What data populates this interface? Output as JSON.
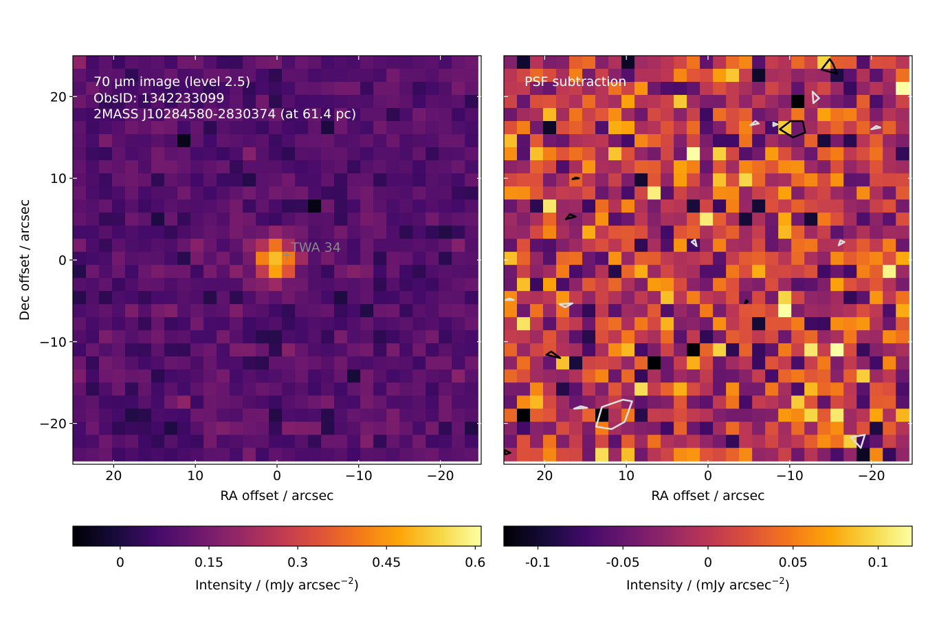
{
  "figure": {
    "colormap": "inferno",
    "colors": {
      "cross": "#888888",
      "target_label": "#888888",
      "annotation_text": "#ffffff",
      "contour_positive": "#000000",
      "contour_negative": "#dddddd"
    }
  },
  "chart_data": [
    {
      "type": "heatmap",
      "panel": "left",
      "annotations": [
        "70 µm image (level 2.5)",
        "ObsID: 1342233099",
        "2MASS J10284580-2830374 (at 61.4 pc)"
      ],
      "target": {
        "label": "TWA 34",
        "x": -1.2,
        "y": 0.6
      },
      "xlabel": "RA offset / arcsec",
      "ylabel": "Dec offset / arcsec",
      "xlim": [
        25,
        -25
      ],
      "ylim": [
        -25,
        25
      ],
      "xticks": [
        20,
        10,
        0,
        -10,
        -20
      ],
      "xtick_labels": [
        "20",
        "10",
        "0",
        "−10",
        "−20"
      ],
      "yticks": [
        20,
        10,
        0,
        -10,
        -20
      ],
      "ytick_labels": [
        "20",
        "10",
        "0",
        "−10",
        "−20"
      ],
      "grid": {
        "nx": 31,
        "ny": 31,
        "pixel_arcsec": 1.6
      },
      "source_peak": {
        "x": 0,
        "y": 0,
        "value": 0.6,
        "sigma_arcsec": 1.6
      },
      "background_value": 0.09,
      "colorbar": {
        "label": "Intensity / (mJy arcsec",
        "label_exp": "−2",
        "label_end": ")",
        "vmin": -0.08,
        "vmax": 0.61,
        "ticks": [
          0,
          0.15,
          0.3,
          0.45,
          0.6
        ],
        "tick_labels": [
          "0",
          "0.15",
          "0.3",
          "0.45",
          "0.6"
        ]
      }
    },
    {
      "type": "heatmap",
      "panel": "right",
      "annotations": [
        "PSF subtraction"
      ],
      "xlabel": "RA offset / arcsec",
      "xlim": [
        25,
        -25
      ],
      "ylim": [
        -25,
        25
      ],
      "xticks": [
        20,
        10,
        0,
        -10,
        -20
      ],
      "xtick_labels": [
        "20",
        "10",
        "0",
        "−10",
        "−20"
      ],
      "grid": {
        "nx": 31,
        "ny": 31,
        "pixel_arcsec": 1.6
      },
      "background_value": 0.0,
      "colorbar": {
        "label": "Intensity / (mJy arcsec",
        "label_exp": "−2",
        "label_end": ")",
        "vmin": -0.12,
        "vmax": 0.12,
        "ticks": [
          -0.1,
          -0.05,
          0,
          0.05,
          0.1
        ],
        "tick_labels": [
          "-0.1",
          "-0.05",
          "0",
          "0.05",
          "0.1"
        ]
      },
      "contours": [
        {
          "sign": "negative",
          "points": [
            [
              11.8,
              -20.7
            ],
            [
              10.2,
              -19.8
            ],
            [
              9.3,
              -17.3
            ],
            [
              10.4,
              -17.1
            ],
            [
              13.0,
              -18.0
            ],
            [
              13.7,
              -20.4
            ]
          ]
        },
        {
          "sign": "positive",
          "points": [
            [
              19.8,
              -11.6
            ],
            [
              18.1,
              -12.0
            ],
            [
              19.2,
              -11.2
            ]
          ]
        },
        {
          "sign": "negative",
          "points": [
            [
              18.2,
              -5.4
            ],
            [
              16.6,
              -5.3
            ],
            [
              17.5,
              -5.8
            ]
          ]
        },
        {
          "sign": "negative",
          "points": [
            [
              24.8,
              -4.9
            ],
            [
              23.8,
              -4.9
            ],
            [
              24.3,
              -4.7
            ]
          ]
        },
        {
          "sign": "negative",
          "points": [
            [
              -5.2,
              16.5
            ],
            [
              -6.2,
              16.7
            ],
            [
              -5.8,
              17.0
            ]
          ]
        },
        {
          "sign": "positive",
          "points": [
            [
              -10.1,
              17.0
            ],
            [
              -8.8,
              16.0
            ],
            [
              -10.4,
              15.0
            ],
            [
              -11.9,
              15.6
            ],
            [
              -11.6,
              17.0
            ]
          ]
        },
        {
          "sign": "positive",
          "points": [
            [
              -14.9,
              24.6
            ],
            [
              -13.9,
              23.3
            ],
            [
              -15.8,
              22.8
            ],
            [
              -15.3,
              24.0
            ]
          ]
        },
        {
          "sign": "negative",
          "points": [
            [
              -13.6,
              19.8
            ],
            [
              -12.8,
              20.6
            ],
            [
              -12.9,
              19.2
            ]
          ]
        },
        {
          "sign": "negative",
          "points": [
            [
              -20.0,
              16.0
            ],
            [
              -21.1,
              16.2
            ],
            [
              -20.6,
              16.4
            ]
          ]
        },
        {
          "sign": "negative",
          "points": [
            [
              -8.0,
              16.4
            ],
            [
              -8.5,
              16.6
            ],
            [
              -8.0,
              16.8
            ]
          ]
        },
        {
          "sign": "negative",
          "points": [
            [
              -16.0,
              1.8
            ],
            [
              -16.7,
              2.2
            ],
            [
              -16.2,
              2.4
            ]
          ]
        },
        {
          "sign": "negative",
          "points": [
            [
              1.4,
              1.7
            ],
            [
              2.0,
              2.2
            ],
            [
              1.6,
              2.5
            ]
          ]
        },
        {
          "sign": "positive",
          "points": [
            [
              17.4,
              5.0
            ],
            [
              16.2,
              5.3
            ],
            [
              16.9,
              5.6
            ]
          ]
        },
        {
          "sign": "positive",
          "points": [
            [
              16.6,
              9.9
            ],
            [
              15.8,
              10.0
            ],
            [
              16.2,
              10.1
            ]
          ]
        },
        {
          "sign": "positive",
          "points": [
            [
              -4.5,
              -5.3
            ],
            [
              -4.9,
              -5.1
            ],
            [
              -4.7,
              -4.9
            ]
          ]
        },
        {
          "sign": "negative",
          "points": [
            [
              16.4,
              -18.2
            ],
            [
              14.8,
              -18.1
            ],
            [
              15.6,
              -17.9
            ]
          ]
        },
        {
          "sign": "negative",
          "points": [
            [
              -18.7,
              -23.0
            ],
            [
              -17.5,
              -21.7
            ],
            [
              -19.2,
              -21.4
            ]
          ]
        },
        {
          "sign": "positive",
          "points": [
            [
              25.0,
              -23.2
            ],
            [
              24.2,
              -23.6
            ],
            [
              24.8,
              -23.8
            ]
          ]
        }
      ]
    }
  ]
}
